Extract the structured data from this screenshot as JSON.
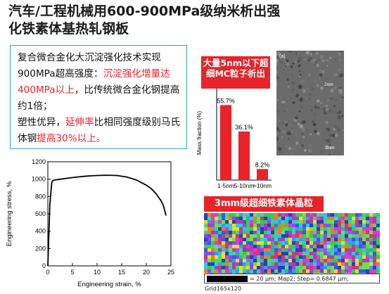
{
  "slide": {
    "title_line1": "汽车/工程机械用600-900MPa级纳米析出强",
    "title_line2": "化铁素体基热轧钢板"
  },
  "textbox": {
    "p1_a": "复合微合金化大沉淀强化技术实现900MPa超高强度：",
    "p1_red": "沉淀强化增量达400MPa以上",
    "p1_b": "，比传统微合金化钢提高约1倍；",
    "p2_a": "塑性优异，",
    "p2_red1": "延伸率",
    "p2_b": "比相同强度级别马氏体钢",
    "p2_red2": "提高30%以上。"
  },
  "captions": {
    "precipitates": "大量5nm以下超细MC粒子析出",
    "grains": "3mm级超细铁素体晶粒"
  },
  "tem": {
    "panel_label": "(a)",
    "labels": [
      "2nm",
      "2nm"
    ]
  },
  "scale_bar_text": "= 20 μm; Map2; Step= 0.6847 μm; Grid165x120",
  "colors": {
    "accent_red": "#e8232a",
    "frame_blue": "#2aa7c4"
  },
  "chart_data": [
    {
      "type": "line",
      "xlabel": "Engineering strain, %",
      "ylabel": "Engineering stress, %",
      "xlim": [
        0,
        25
      ],
      "ylim": [
        0,
        1200
      ],
      "xticks": [
        "0",
        "5",
        "10",
        "15",
        "20",
        "25"
      ],
      "yticks": [
        "0",
        "200",
        "400",
        "600",
        "800",
        "1000",
        "1200"
      ],
      "x": [
        0,
        0.4,
        0.8,
        1.0,
        2,
        4,
        6,
        8,
        10,
        12,
        14,
        16,
        18,
        20,
        21,
        22,
        23,
        23.5,
        24
      ],
      "y": [
        0,
        700,
        960,
        985,
        995,
        1010,
        1025,
        1035,
        1042,
        1045,
        1042,
        1025,
        990,
        930,
        890,
        830,
        750,
        690,
        580
      ]
    },
    {
      "type": "bar",
      "categories": [
        "1-5nm",
        "5-10nm",
        ">10nm"
      ],
      "values": [
        55.7,
        36.1,
        8.2
      ],
      "data_labels": [
        "55.7%",
        "36.1%",
        "8.2%"
      ],
      "ylabel": "Mass fraction (%)",
      "ylim": [
        0,
        70
      ],
      "bar_color": "#e8232a"
    }
  ]
}
